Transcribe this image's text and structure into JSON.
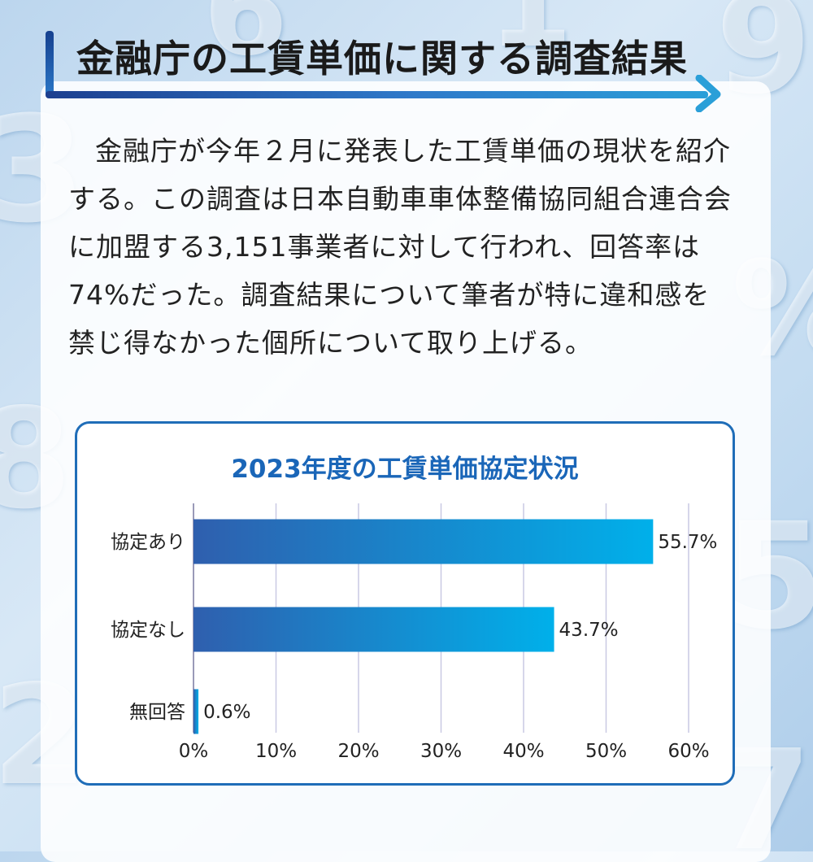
{
  "title": "金融庁の工賃単価に関する調査結果",
  "body": "金融庁が今年２月に発表した工賃単価の現状を紹介する。この調査は日本自動車車体整備協同組合連合会に加盟する3,151事業者に対して行われ、回答率は74%だった。調査結果について筆者が特に違和感を禁じ得なかった個所について取り上げる。",
  "colors": {
    "accent": "#1a66b8",
    "bar_start": "#2f5fae",
    "bar_end": "#00b0ea",
    "frame": "#1f6db8"
  },
  "chart_data": {
    "type": "bar",
    "orientation": "horizontal",
    "title": "2023年度の工賃単価協定状況",
    "categories": [
      "協定あり",
      "協定なし",
      "無回答"
    ],
    "values": [
      55.7,
      43.7,
      0.6
    ],
    "value_labels": [
      "55.7%",
      "43.7%",
      "0.6%"
    ],
    "xlim": [
      0,
      60
    ],
    "xticks": [
      "0%",
      "10%",
      "20%",
      "30%",
      "40%",
      "50%",
      "60%"
    ],
    "grid": true
  }
}
